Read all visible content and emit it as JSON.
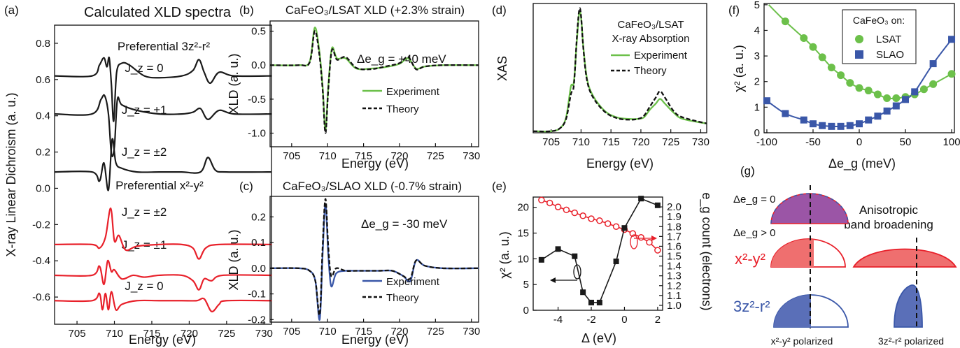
{
  "colors": {
    "black": "#1a1a1a",
    "red": "#e8202a",
    "green": "#6cc04a",
    "blue": "#3a57a8",
    "dashed": "#111111",
    "purple": "#9b55a6",
    "redfill": "#ef6f6f",
    "bluefill": "#5a6fb8"
  },
  "panels": {
    "a": {
      "label": "(a)",
      "title": "Calculated XLD spectra",
      "ylabel": "X-ray Linear Dichroism (a. u.)",
      "xlabel": "Energy (eV)",
      "xticks": [
        "705",
        "710",
        "715",
        "720",
        "725",
        "730"
      ],
      "yticks": [
        "0.8",
        "0.6",
        "0.4",
        "0.2",
        "0.0",
        "-0.2",
        "-0.4",
        "-0.6"
      ],
      "group1": "Preferential 3z²-r²",
      "group2": "Preferential x²-y²",
      "curve_labels": [
        "J_z = 0",
        "J_z = ±1",
        "J_z = ±2",
        "J_z = ±2",
        "J_z = ±1",
        "J_z = 0"
      ]
    },
    "b": {
      "label": "(b)",
      "title": "CaFeO₃/LSAT XLD (+2.3% strain)",
      "annotation": "Δe_g = +40 meV",
      "ylabel": "XLD (a. u.)",
      "xlabel": "Energy (eV)",
      "xticks": [
        "705",
        "710",
        "715",
        "720",
        "725",
        "730"
      ],
      "yticks": [
        "0.5",
        "0.0",
        "-0.5",
        "-1.0"
      ],
      "legend": [
        "Experiment",
        "Theory"
      ]
    },
    "c": {
      "label": "(c)",
      "title": "CaFeO₃/SLAO XLD (-0.7% strain)",
      "annotation": "Δe_g = -30 meV",
      "ylabel": "XLD (a. u.)",
      "xlabel": "Energy (eV)",
      "xticks": [
        "705",
        "710",
        "715",
        "720",
        "725",
        "730"
      ],
      "yticks": [
        "0.2",
        "0.1",
        "0.0",
        "-0.1",
        "-0.2"
      ],
      "legend": [
        "Experiment",
        "Theory"
      ]
    },
    "d": {
      "label": "(d)",
      "title_lines": [
        "CaFeO₃/LSAT",
        "X-ray Absorption"
      ],
      "ylabel": "XAS",
      "xlabel": "Energy (eV)",
      "xticks": [
        "705",
        "710",
        "715",
        "720",
        "725",
        "730"
      ],
      "legend": [
        "Experiment",
        "Theory"
      ]
    },
    "e": {
      "label": "(e)",
      "ylabel": "χ² (a. u.)",
      "ylabel2": "e_g count (electrons)",
      "xlabel": "Δ (eV)",
      "xticks": [
        "-4",
        "-2",
        "0",
        "2"
      ],
      "yticks": [
        "20",
        "15",
        "10",
        "5",
        "0"
      ],
      "y2ticks": [
        "2.0",
        "1.9",
        "1.8",
        "1.7",
        "1.6",
        "1.5",
        "1.4",
        "1.3",
        "1.2",
        "1.1",
        "1.0"
      ]
    },
    "f": {
      "label": "(f)",
      "ylabel": "χ² (a. u.)",
      "xlabel": "Δe_g (meV)",
      "xticks": [
        "-100",
        "-50",
        "0",
        "50",
        "100"
      ],
      "yticks": [
        "5",
        "4",
        "3",
        "2",
        "1",
        "0"
      ],
      "legend_title": "CaFeO₃ on:",
      "legend": [
        "LSAT",
        "SLAO"
      ]
    },
    "g": {
      "label": "(g)",
      "row1": "Δe_g = 0",
      "row2": "Δe_g > 0",
      "orb1": "x²-y²",
      "orb2": "3z²-r²",
      "right_title": [
        "Anisotropic",
        "band broadening"
      ],
      "bottom": [
        "x²-y² polarized",
        "3z²-r² polarized"
      ]
    }
  },
  "chart_data": [
    {
      "panel": "a",
      "type": "line",
      "title": "Calculated XLD spectra",
      "xlabel": "Energy (eV)",
      "ylabel": "X-ray Linear Dichroism (a. u.)",
      "xlim": [
        702,
        731
      ],
      "ylim": [
        -0.75,
        0.9
      ],
      "series": [
        {
          "name": "J_z = 0",
          "offset": 0.62
        },
        {
          "name": "J_z = ±1",
          "offset": 0.41
        },
        {
          "name": "J_z = ±2",
          "offset": 0.09
        },
        {
          "name": "J_z = ±2",
          "offset": -0.31
        },
        {
          "name": "J_z = ±1",
          "offset": -0.48
        },
        {
          "name": "J_z = 0",
          "offset": -0.62
        }
      ]
    },
    {
      "panel": "b",
      "type": "line",
      "xlabel": "Energy (eV)",
      "ylabel": "XLD (a. u.)",
      "xlim": [
        702,
        731
      ],
      "ylim": [
        -1.2,
        0.65
      ],
      "x": [
        702,
        706,
        707.5,
        708.2,
        708.8,
        709.3,
        709.7,
        710.1,
        710.6,
        711.3,
        712.5,
        714,
        716,
        718,
        720,
        721.2,
        722.3,
        723.5,
        726,
        731
      ],
      "series": [
        {
          "name": "Experiment",
          "values": [
            0,
            0,
            0.05,
            0.55,
            0.25,
            -0.3,
            -0.95,
            -0.3,
            0.25,
            0.1,
            0.1,
            -0.05,
            -0.05,
            -0.03,
            0.02,
            0.1,
            -0.05,
            -0.02,
            0,
            0
          ]
        },
        {
          "name": "Theory",
          "values": [
            0,
            0,
            0.04,
            0.5,
            0.2,
            -0.35,
            -1.0,
            -0.35,
            0.22,
            0.08,
            0.12,
            -0.04,
            -0.06,
            -0.02,
            0.03,
            0.12,
            -0.06,
            -0.02,
            0,
            0
          ]
        }
      ]
    },
    {
      "panel": "c",
      "type": "line",
      "xlabel": "Energy (eV)",
      "ylabel": "XLD (a. u.)",
      "xlim": [
        702,
        731
      ],
      "ylim": [
        -0.21,
        0.28
      ],
      "x": [
        702,
        706,
        707.5,
        708.3,
        708.9,
        709.3,
        709.7,
        710.1,
        710.5,
        711.2,
        712.5,
        714,
        717,
        719,
        720.5,
        721.5,
        722.3,
        723.5,
        726,
        731
      ],
      "series": [
        {
          "name": "Experiment",
          "values": [
            0,
            0,
            -0.01,
            -0.05,
            -0.2,
            0.05,
            0.25,
            0.05,
            -0.07,
            -0.02,
            -0.01,
            -0.01,
            -0.01,
            -0.01,
            -0.03,
            -0.05,
            0.03,
            0.01,
            0,
            0
          ]
        },
        {
          "name": "Theory",
          "values": [
            0,
            0,
            -0.01,
            -0.05,
            -0.18,
            0.08,
            0.27,
            0.08,
            -0.03,
            0,
            -0.01,
            -0.01,
            -0.01,
            -0.01,
            -0.03,
            -0.04,
            0.03,
            0.01,
            0,
            0
          ]
        }
      ]
    },
    {
      "panel": "d",
      "type": "line",
      "xlabel": "Energy (eV)",
      "ylabel": "XAS",
      "xlim": [
        702,
        731
      ],
      "ylim": [
        0,
        8.4
      ],
      "x": [
        702,
        705,
        706.5,
        707.5,
        708.3,
        708.8,
        709.3,
        709.7,
        710,
        710.4,
        711,
        712,
        714,
        716,
        718,
        719.5,
        720.5,
        721.5,
        722.5,
        723.2,
        724,
        725.5,
        727,
        731
      ],
      "series": [
        {
          "name": "Experiment",
          "values": [
            0.1,
            0.1,
            0.3,
            1,
            3,
            3.3,
            6,
            7.8,
            7.5,
            5.5,
            3.5,
            2.4,
            1.4,
            1,
            0.9,
            0.9,
            1,
            1.5,
            1.9,
            2.2,
            1.9,
            1.3,
            0.9,
            0.6
          ]
        },
        {
          "name": "Theory",
          "values": [
            0.1,
            0.1,
            0.3,
            0.9,
            2.5,
            3.1,
            6.2,
            8.0,
            7.6,
            5.4,
            3.4,
            2.3,
            1.35,
            0.95,
            0.85,
            0.9,
            1.1,
            1.7,
            2.3,
            2.7,
            2.3,
            1.4,
            1,
            0.6
          ]
        }
      ]
    },
    {
      "panel": "e",
      "type": "line",
      "xlabel": "Δ (eV)",
      "ylabel": "χ² (a. u.)",
      "ylabel2": "e_g count (electrons)",
      "xlim": [
        -5.5,
        2.3
      ],
      "ylim": [
        0,
        22
      ],
      "y2lim": [
        0.95,
        2.1
      ],
      "series": [
        {
          "name": "χ²",
          "axis": "left",
          "x": [
            -5,
            -4,
            -3,
            -2.5,
            -2,
            -1.5,
            -0.5,
            0,
            1,
            2
          ],
          "values": [
            9.8,
            11.9,
            10.5,
            3.5,
            1.5,
            1.5,
            9.5,
            16,
            21.7,
            20.4
          ]
        },
        {
          "name": "e_g count",
          "axis": "right",
          "x": [
            -5,
            -4.5,
            -4,
            -3.5,
            -3,
            -2.5,
            -2,
            -1.5,
            -1,
            -0.5,
            0,
            0.5,
            1,
            1.5,
            2
          ],
          "values": [
            2.07,
            2.04,
            2.0,
            1.97,
            1.94,
            1.91,
            1.88,
            1.86,
            1.83,
            1.8,
            1.77,
            1.73,
            1.69,
            1.64,
            1.56
          ]
        }
      ]
    },
    {
      "panel": "f",
      "type": "line",
      "xlabel": "Δe_g (meV)",
      "ylabel": "χ² (a. u.)",
      "xlim": [
        -103,
        103
      ],
      "ylim": [
        0,
        5.05
      ],
      "series": [
        {
          "name": "LSAT",
          "x": [
            -80,
            -60,
            -50,
            -40,
            -30,
            -20,
            -10,
            0,
            10,
            20,
            30,
            40,
            50,
            60,
            70,
            80,
            100
          ],
          "values": [
            4.35,
            3.7,
            3.35,
            2.95,
            2.55,
            2.25,
            1.95,
            1.75,
            1.65,
            1.5,
            1.35,
            1.35,
            1.4,
            1.5,
            1.7,
            1.9,
            2.3
          ]
        },
        {
          "name": "SLAO",
          "x": [
            -100,
            -80,
            -60,
            -50,
            -40,
            -30,
            -20,
            -10,
            0,
            10,
            20,
            30,
            40,
            50,
            60,
            80,
            100
          ],
          "values": [
            1.25,
            0.75,
            0.5,
            0.35,
            0.28,
            0.25,
            0.25,
            0.28,
            0.35,
            0.5,
            0.65,
            0.85,
            1.05,
            1.3,
            1.6,
            2.7,
            3.65
          ]
        }
      ]
    }
  ]
}
